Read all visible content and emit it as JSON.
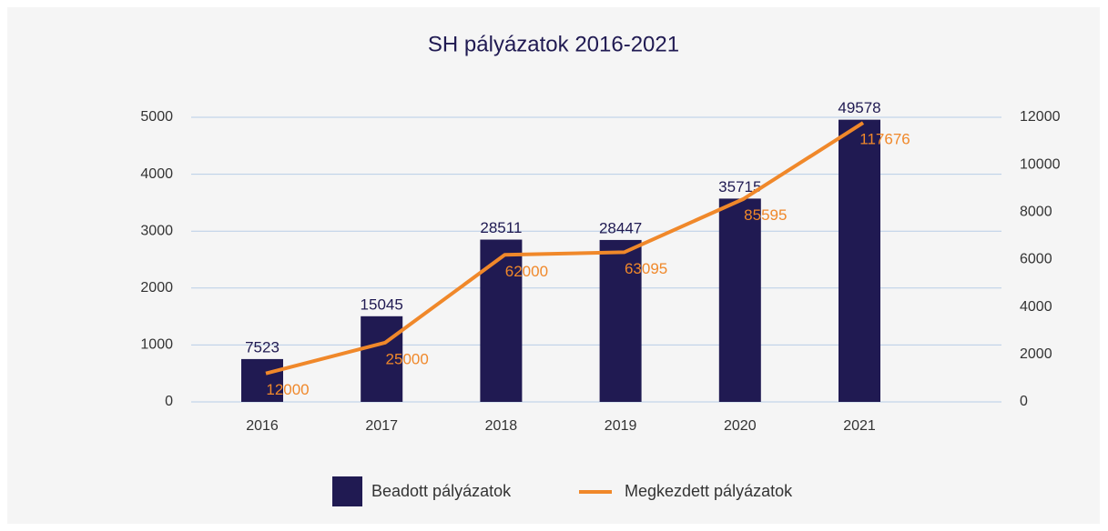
{
  "chart_data": {
    "type": "bar_line",
    "title": "SH pályázatok 2016-2021",
    "categories": [
      "2016",
      "2017",
      "2018",
      "2019",
      "2020",
      "2021"
    ],
    "series": [
      {
        "name": "Beadott pályázatok",
        "color": "#201a52",
        "type": "bar",
        "axis": "y",
        "values": [
          752.3,
          1504.5,
          2851.1,
          2844.7,
          3571.5,
          4957.8
        ],
        "value_labels": [
          "7523",
          "15045",
          "28511",
          "28447",
          "35715",
          "49578"
        ]
      },
      {
        "name": "Megkezdett pályázatok",
        "color": "#f0882a",
        "type": "line",
        "axis": "y2",
        "values": [
          1200,
          2500,
          6200,
          6309.5,
          8559.5,
          11767.6
        ],
        "value_labels": [
          "12000",
          "25000",
          "62000",
          "63095",
          "85595",
          "117676"
        ]
      }
    ],
    "ylim": [
      0,
      5000
    ],
    "yticks": [
      0,
      1000,
      2000,
      3000,
      4000,
      5000
    ],
    "y2lim": [
      0,
      12000
    ],
    "y2ticks": [
      0,
      2000,
      4000,
      6000,
      8000,
      10000,
      12000
    ],
    "grid": true
  }
}
